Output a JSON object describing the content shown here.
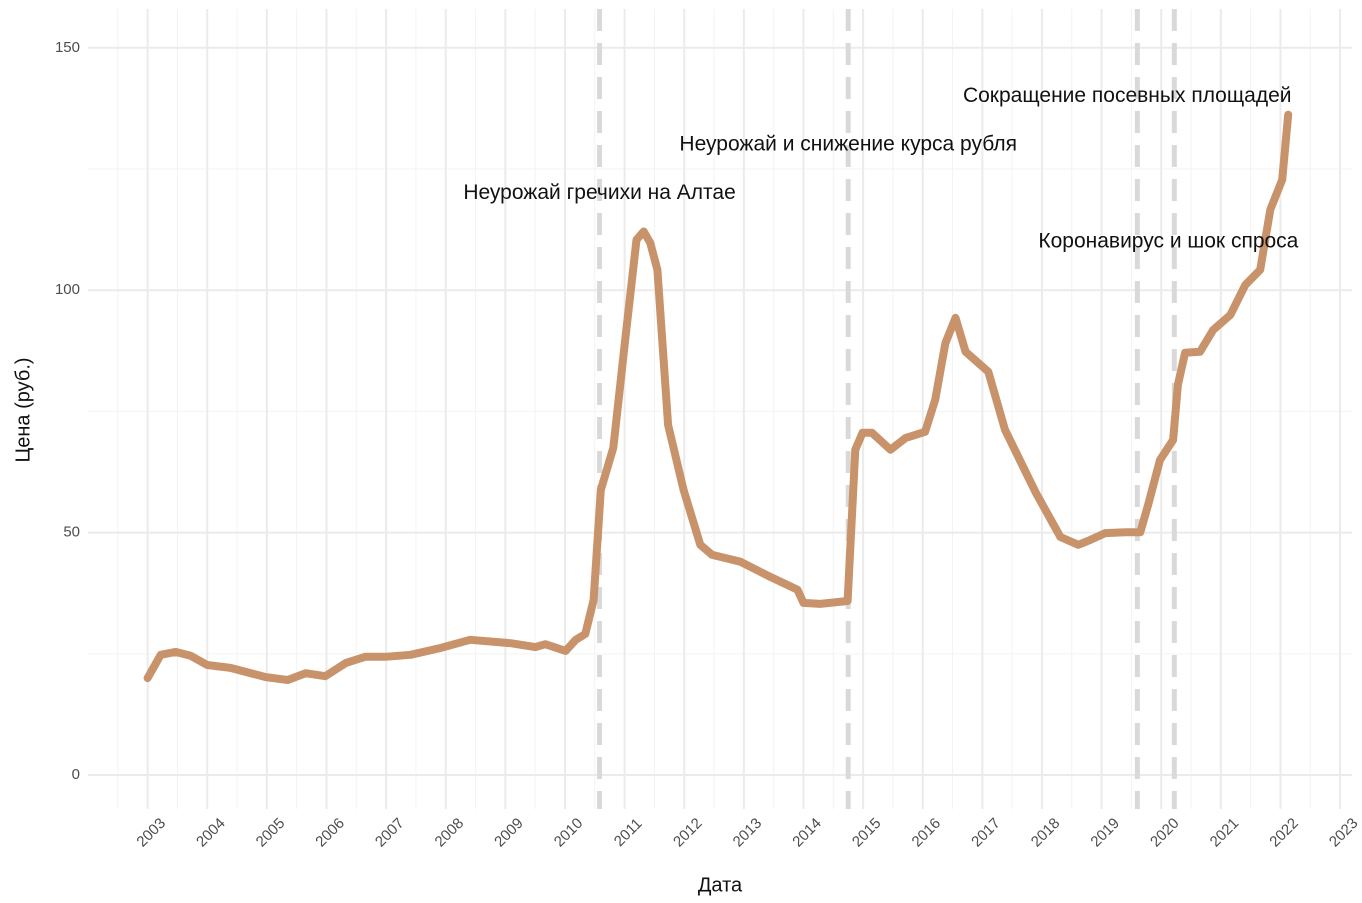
{
  "chart_data": {
    "type": "line",
    "xlabel": "Дата",
    "ylabel": "Цена (руб.)",
    "x": [
      2003.0,
      2003.22,
      2003.47,
      2003.72,
      2004.0,
      2004.39,
      2004.98,
      2005.35,
      2005.65,
      2005.98,
      2006.32,
      2006.65,
      2006.99,
      2007.41,
      2007.91,
      2008.41,
      2009.09,
      2009.5,
      2009.67,
      2010.01,
      2010.18,
      2010.34,
      2010.48,
      2010.6,
      2010.81,
      2011.01,
      2011.2,
      2011.32,
      2011.43,
      2011.55,
      2011.73,
      2011.99,
      2012.27,
      2012.47,
      2012.94,
      2013.44,
      2013.9,
      2014.0,
      2014.28,
      2014.74,
      2014.87,
      2014.99,
      2015.15,
      2015.46,
      2015.71,
      2016.04,
      2016.21,
      2016.38,
      2016.55,
      2016.72,
      2017.1,
      2017.38,
      2017.89,
      2018.31,
      2018.61,
      2018.81,
      2019.06,
      2019.4,
      2019.65,
      2019.78,
      2019.98,
      2020.2,
      2020.28,
      2020.4,
      2020.65,
      2020.87,
      2021.16,
      2021.41,
      2021.66,
      2021.83,
      2022.03,
      2022.13
    ],
    "values": [
      20,
      24.8,
      25.4,
      24.6,
      22.7,
      22.1,
      20.2,
      19.6,
      21.0,
      20.4,
      23.1,
      24.4,
      24.4,
      24.8,
      26.2,
      27.9,
      27.2,
      26.4,
      27.0,
      25.6,
      27.9,
      29.1,
      36.1,
      58.8,
      67.5,
      89.8,
      110.4,
      112.1,
      109.8,
      104.2,
      72.2,
      58.8,
      47.5,
      45.4,
      44.0,
      40.9,
      38.2,
      35.5,
      35.3,
      35.9,
      67.1,
      70.6,
      70.6,
      67.1,
      69.5,
      70.8,
      77.4,
      89.1,
      94.3,
      87.3,
      83.2,
      71.2,
      58.4,
      49.1,
      47.5,
      48.5,
      49.9,
      50.1,
      50.1,
      55.7,
      65.0,
      69.1,
      80.5,
      87.1,
      87.3,
      91.8,
      94.9,
      101.1,
      104.2,
      116.6,
      122.8,
      136.2
    ],
    "color": "#c8936a",
    "xlim": [
      2002.0,
      2023.2
    ],
    "xticks": [
      2003,
      2004,
      2005,
      2006,
      2007,
      2008,
      2009,
      2010,
      2011,
      2012,
      2013,
      2014,
      2015,
      2016,
      2017,
      2018,
      2019,
      2020,
      2021,
      2022,
      2023
    ],
    "ylim": [
      -7,
      158
    ],
    "yticks": [
      0,
      50,
      100,
      150
    ],
    "grid": true,
    "vlines": [
      2010.58,
      2014.75,
      2019.6,
      2020.22
    ],
    "annotations": [
      {
        "text": "Неурожай гречихи на Алтае",
        "x": 2010.58,
        "y": 120
      },
      {
        "text": "Неурожай и снижение курса рубля",
        "x": 2014.75,
        "y": 130
      },
      {
        "text": "Сокращение посевных площадей",
        "x": 2019.43,
        "y": 140
      },
      {
        "text": "Коронавирус и шок спроса",
        "x": 2020.12,
        "y": 110
      }
    ]
  }
}
